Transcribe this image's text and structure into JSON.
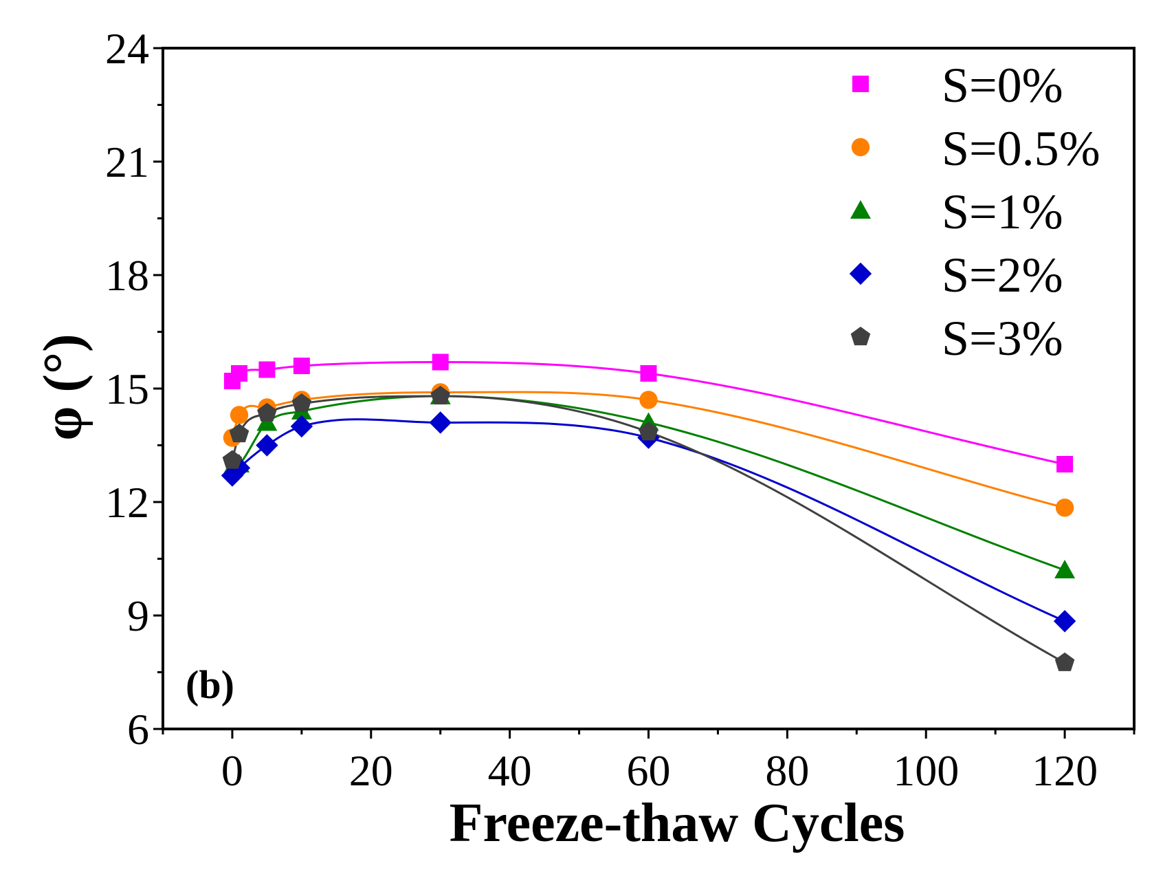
{
  "chart_data": {
    "type": "scatter",
    "title": "",
    "panel_label": "(b)",
    "xlabel": "Freeze-thaw Cycles",
    "ylabel": "φ (°)",
    "xlim": [
      -10,
      130
    ],
    "ylim": [
      6,
      24
    ],
    "x_ticks": [
      0,
      20,
      40,
      60,
      80,
      100,
      120
    ],
    "y_ticks": [
      6,
      9,
      12,
      15,
      18,
      21,
      24
    ],
    "grid": false,
    "legend_position": "top-right",
    "x": [
      0,
      1,
      5,
      10,
      30,
      60,
      120
    ],
    "series": [
      {
        "name": "S=0%",
        "marker": "square",
        "color": "#ff00ff",
        "values": [
          15.2,
          15.4,
          15.5,
          15.6,
          15.7,
          15.4,
          13.0
        ],
        "fit": "smooth"
      },
      {
        "name": "S=0.5%",
        "marker": "circle",
        "color": "#ff8000",
        "values": [
          13.7,
          14.3,
          14.5,
          14.7,
          14.9,
          14.7,
          11.85
        ],
        "fit": "smooth"
      },
      {
        "name": "S=1%",
        "marker": "triangle",
        "color": "#008000",
        "values": [
          12.9,
          13.0,
          14.1,
          14.4,
          14.8,
          14.1,
          10.2
        ],
        "fit": "smooth"
      },
      {
        "name": "S=2%",
        "marker": "diamond",
        "color": "#0000cc",
        "values": [
          12.7,
          12.9,
          13.5,
          14.0,
          14.1,
          13.7,
          8.85
        ],
        "fit": "smooth"
      },
      {
        "name": "S=3%",
        "marker": "pentagon",
        "color": "#404040",
        "values": [
          13.1,
          13.8,
          14.35,
          14.6,
          14.8,
          13.85,
          7.75
        ],
        "fit": "smooth"
      }
    ]
  }
}
